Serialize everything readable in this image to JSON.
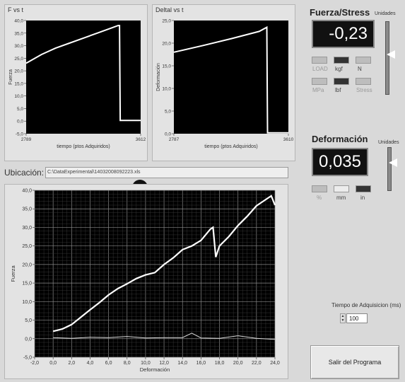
{
  "top_left_chart": {
    "title": "F vs t",
    "ylabel": "Fuerza",
    "xlabel": "tiempo (ptos Adquiridos)",
    "y_ticks": [
      "40,0",
      "35,0",
      "30,0",
      "25,0",
      "20,0",
      "15,0",
      "10,0",
      "5,0",
      "0,0",
      "-5,0"
    ],
    "x_ticks": [
      "2789",
      "3612"
    ]
  },
  "top_right_chart": {
    "title": "Deltal vs t",
    "ylabel": "Deformación",
    "xlabel": "tiempo (ptos Adquiridos)",
    "y_ticks": [
      "25,0",
      "20,0",
      "15,0",
      "10,0",
      "5,0",
      "0,0"
    ],
    "x_ticks": [
      "2787",
      "3610"
    ]
  },
  "location": {
    "label": "Ubicación:",
    "path": "C:\\DataExperimental\\14032008092223.xls"
  },
  "main_chart": {
    "ylabel": "Fuerza",
    "xlabel": "Deformación",
    "y_ticks": [
      "40,0",
      "35,0",
      "30,0",
      "25,0",
      "20,0",
      "15,0",
      "10,0",
      "5,0",
      "0,0",
      "-5,0"
    ],
    "x_ticks": [
      "-2,0",
      "0,0",
      "2,0",
      "4,0",
      "6,0",
      "8,0",
      "10,0",
      "12,0",
      "14,0",
      "16,0",
      "18,0",
      "20,0",
      "22,0",
      "24,0"
    ]
  },
  "chart_data": [
    {
      "type": "line",
      "title": "F vs t",
      "xlabel": "tiempo (ptos Adquiridos)",
      "ylabel": "Fuerza",
      "xlim": [
        2789,
        3612
      ],
      "ylim": [
        -5,
        40
      ],
      "series": [
        {
          "x": [
            2789,
            2900,
            3000,
            3100,
            3200,
            3300,
            3400,
            3450,
            3460,
            3465,
            3612
          ],
          "y": [
            23,
            26.5,
            29,
            31,
            33,
            35,
            37,
            38,
            38,
            0.3,
            0.3
          ]
        }
      ]
    },
    {
      "type": "line",
      "title": "Deltal vs t",
      "xlabel": "tiempo (ptos Adquiridos)",
      "ylabel": "Deformación",
      "xlim": [
        2787,
        3610
      ],
      "ylim": [
        0,
        25
      ],
      "series": [
        {
          "x": [
            2787,
            3000,
            3200,
            3400,
            3455,
            3460,
            3610
          ],
          "y": [
            18,
            19.5,
            21,
            22.6,
            23.5,
            0.2,
            0.2
          ]
        }
      ]
    },
    {
      "type": "line",
      "xlabel": "Deformación",
      "ylabel": "Fuerza",
      "xlim": [
        -2,
        24
      ],
      "ylim": [
        -5,
        40
      ],
      "series": [
        {
          "x": [
            0,
            1,
            2,
            3,
            4,
            5,
            6,
            7,
            8,
            9,
            10,
            11,
            12,
            13,
            14,
            15,
            16,
            17,
            17.3,
            17.6,
            18,
            19,
            20,
            21,
            22,
            23,
            23.6,
            24
          ],
          "y": [
            2,
            2.6,
            3.8,
            5.8,
            7.8,
            9.7,
            11.8,
            13.5,
            14.8,
            16.2,
            17.2,
            17.8,
            20,
            21.8,
            24,
            25,
            26.5,
            29.5,
            30,
            22,
            25,
            27.5,
            30.5,
            33,
            35.8,
            37.5,
            38.5,
            36
          ]
        },
        {
          "x": [
            0,
            2,
            4,
            6,
            8,
            10,
            12,
            14,
            15,
            16,
            18,
            20,
            22,
            24
          ],
          "y": [
            0.3,
            0.1,
            0.4,
            0.3,
            0.6,
            0.2,
            0.3,
            0.3,
            1.5,
            0.2,
            0.1,
            0.8,
            0.1,
            -0.2
          ]
        }
      ]
    }
  ],
  "fuerza": {
    "title": "Fuerza/Stress",
    "value": "-0,23",
    "units_label": "Unidades",
    "units": [
      "LOAD",
      "kgf",
      "N",
      "MPa",
      "lbf",
      "Stress"
    ],
    "slider_level": 0.45
  },
  "deformacion": {
    "title": "Deformación",
    "value": "0,035",
    "units_label": "Unidades",
    "units": [
      "%",
      "mm",
      "in"
    ],
    "slider_level": 0.35
  },
  "tiempo": {
    "label": "Tiempo de Adquisicion (ms)",
    "value": "100"
  },
  "exit_button": {
    "label": "Salir del Programa"
  },
  "colors": {
    "plot_bg": "#000000",
    "trace": "#ffffff",
    "panel_bg": "#d9d9d9"
  }
}
